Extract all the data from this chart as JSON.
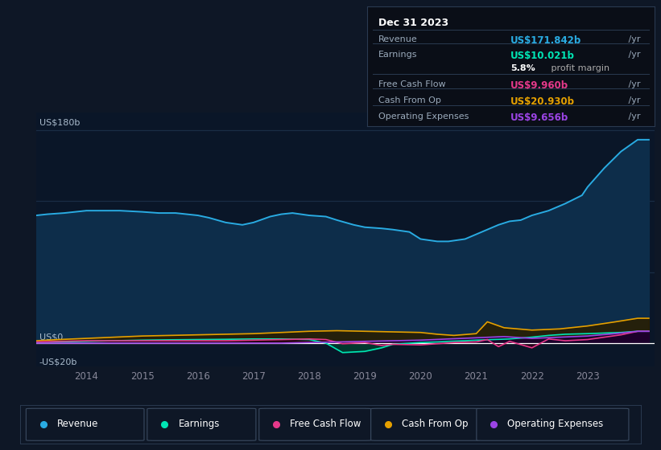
{
  "bg_color": "#0e1726",
  "plot_bg_color": "#0a1628",
  "grid_color": "#1a2d45",
  "ylim": [
    -20,
    195
  ],
  "xlim": [
    2013.1,
    2024.2
  ],
  "revenue": {
    "x": [
      2013.1,
      2013.3,
      2013.6,
      2014.0,
      2014.3,
      2014.6,
      2015.0,
      2015.3,
      2015.6,
      2016.0,
      2016.2,
      2016.5,
      2016.8,
      2017.0,
      2017.3,
      2017.5,
      2017.7,
      2018.0,
      2018.3,
      2018.5,
      2018.8,
      2019.0,
      2019.3,
      2019.5,
      2019.8,
      2020.0,
      2020.3,
      2020.5,
      2020.8,
      2021.0,
      2021.2,
      2021.4,
      2021.6,
      2021.8,
      2022.0,
      2022.3,
      2022.6,
      2022.9,
      2023.0,
      2023.3,
      2023.6,
      2023.9,
      2024.1
    ],
    "y": [
      108,
      109,
      110,
      112,
      112,
      112,
      111,
      110,
      110,
      108,
      106,
      102,
      100,
      102,
      107,
      109,
      110,
      108,
      107,
      104,
      100,
      98,
      97,
      96,
      94,
      88,
      86,
      86,
      88,
      92,
      96,
      100,
      103,
      104,
      108,
      112,
      118,
      125,
      132,
      148,
      162,
      172,
      172
    ],
    "color": "#29abe2",
    "fill_color": "#0d2d4a"
  },
  "earnings": {
    "x": [
      2013.1,
      2013.5,
      2014.0,
      2014.5,
      2015.0,
      2015.5,
      2016.0,
      2016.5,
      2017.0,
      2017.5,
      2018.0,
      2018.3,
      2018.6,
      2019.0,
      2019.3,
      2019.5,
      2020.0,
      2020.3,
      2020.5,
      2020.8,
      2021.0,
      2021.3,
      2021.6,
      2022.0,
      2022.3,
      2022.6,
      2023.0,
      2023.3,
      2023.6,
      2023.9,
      2024.1
    ],
    "y": [
      0.5,
      1.0,
      1.5,
      2.0,
      2.5,
      2.8,
      3.0,
      3.2,
      3.5,
      3.5,
      3.0,
      0.0,
      -8.0,
      -7.0,
      -4.0,
      -1.0,
      0.5,
      1.0,
      1.5,
      2.0,
      2.5,
      3.0,
      3.5,
      5.0,
      6.5,
      7.5,
      8.0,
      8.5,
      9.0,
      10.0,
      10.0
    ],
    "color": "#00e5b4",
    "fill_color": "#003d30"
  },
  "cash_from_op": {
    "x": [
      2013.1,
      2013.5,
      2014.0,
      2014.5,
      2015.0,
      2015.5,
      2016.0,
      2016.5,
      2017.0,
      2017.5,
      2018.0,
      2018.5,
      2019.0,
      2019.5,
      2020.0,
      2020.3,
      2020.6,
      2021.0,
      2021.2,
      2021.5,
      2022.0,
      2022.5,
      2023.0,
      2023.5,
      2023.9,
      2024.1
    ],
    "y": [
      2.0,
      3.0,
      4.0,
      5.0,
      6.0,
      6.5,
      7.0,
      7.5,
      8.0,
      9.0,
      10.0,
      10.5,
      10.0,
      9.5,
      9.0,
      7.5,
      6.5,
      8.0,
      18.0,
      13.0,
      11.0,
      12.0,
      14.5,
      18.0,
      21.0,
      21.0
    ],
    "color": "#e5a000",
    "fill_color": "#2a1e00"
  },
  "free_cash_flow": {
    "x": [
      2013.1,
      2013.5,
      2014.0,
      2014.5,
      2015.0,
      2015.5,
      2016.0,
      2016.5,
      2017.0,
      2017.5,
      2018.0,
      2018.3,
      2018.6,
      2019.0,
      2019.3,
      2019.5,
      2020.0,
      2020.3,
      2020.6,
      2021.0,
      2021.2,
      2021.4,
      2021.6,
      2022.0,
      2022.3,
      2022.6,
      2023.0,
      2023.3,
      2023.6,
      2023.9,
      2024.1
    ],
    "y": [
      1.0,
      1.5,
      2.0,
      2.0,
      2.0,
      2.0,
      2.0,
      2.0,
      2.5,
      3.0,
      3.5,
      3.0,
      -0.5,
      0.5,
      -2.0,
      -1.0,
      -1.5,
      -0.5,
      0.5,
      1.0,
      3.0,
      -3.0,
      1.5,
      -4.0,
      3.5,
      2.0,
      3.0,
      5.0,
      7.0,
      10.0,
      10.0
    ],
    "color": "#e5398a",
    "fill_color": "#2a0018"
  },
  "operating_expenses": {
    "x": [
      2013.1,
      2013.5,
      2014.0,
      2014.5,
      2015.0,
      2015.5,
      2016.0,
      2016.5,
      2017.0,
      2017.5,
      2018.0,
      2018.5,
      2019.0,
      2019.5,
      2020.0,
      2020.5,
      2021.0,
      2021.5,
      2022.0,
      2022.5,
      2023.0,
      2023.5,
      2023.9,
      2024.1
    ],
    "y": [
      0,
      0,
      0,
      0,
      0,
      0,
      0,
      0,
      0,
      0,
      0.5,
      1.0,
      1.5,
      2.0,
      2.5,
      3.5,
      4.5,
      5.5,
      4.0,
      5.0,
      6.0,
      8.0,
      10.0,
      10.0
    ],
    "color": "#9b44e5",
    "fill_color": "#1a0030"
  },
  "tooltip": {
    "title": "Dec 31 2023",
    "bg_color": "#0a0e17",
    "border_color": "#2a3a50",
    "rows": [
      {
        "label": "Revenue",
        "value": "US$171.842b",
        "suffix": " /yr",
        "value_color": "#29abe2",
        "has_line_above": false
      },
      {
        "label": "Earnings",
        "value": "US$10.021b",
        "suffix": " /yr",
        "value_color": "#00e5b4",
        "has_line_above": true
      },
      {
        "label": "",
        "value": "5.8%",
        "suffix": " profit margin",
        "value_color": "#ffffff",
        "suffix_color": "#aaaaaa",
        "has_line_above": false
      },
      {
        "label": "Free Cash Flow",
        "value": "US$9.960b",
        "suffix": " /yr",
        "value_color": "#e5398a",
        "has_line_above": true
      },
      {
        "label": "Cash From Op",
        "value": "US$20.930b",
        "suffix": " /yr",
        "value_color": "#e5a000",
        "has_line_above": true
      },
      {
        "label": "Operating Expenses",
        "value": "US$9.656b",
        "suffix": " /yr",
        "value_color": "#9b44e5",
        "has_line_above": true
      }
    ]
  },
  "legend": [
    {
      "label": "Revenue",
      "color": "#29abe2"
    },
    {
      "label": "Earnings",
      "color": "#00e5b4"
    },
    {
      "label": "Free Cash Flow",
      "color": "#e5398a"
    },
    {
      "label": "Cash From Op",
      "color": "#e5a000"
    },
    {
      "label": "Operating Expenses",
      "color": "#9b44e5"
    }
  ],
  "x_tick_years": [
    2014,
    2015,
    2016,
    2017,
    2018,
    2019,
    2020,
    2021,
    2022,
    2023
  ],
  "ylabel_180": "US$180b",
  "ylabel_0": "US$0",
  "ylabel_neg20": "-US$20b"
}
